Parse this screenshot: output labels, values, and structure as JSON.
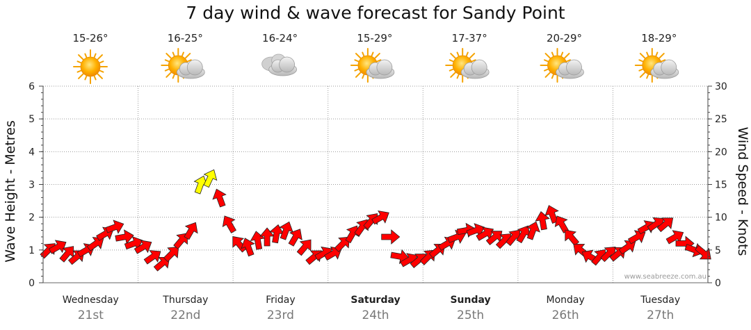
{
  "title": "7 day wind & wave forecast for Sandy Point",
  "credit": "www.seabreeze.com.au",
  "days": [
    {
      "name": "Wednesday",
      "date": "21st",
      "temp": "15-26°",
      "icon": "sun-icon",
      "bold": false
    },
    {
      "name": "Thursday",
      "date": "22nd",
      "temp": "16-25°",
      "icon": "sun-cloud-icon",
      "bold": false
    },
    {
      "name": "Friday",
      "date": "23rd",
      "temp": "16-24°",
      "icon": "cloud-icon",
      "bold": false
    },
    {
      "name": "Saturday",
      "date": "24th",
      "temp": "15-29°",
      "icon": "sun-cloud-icon",
      "bold": true
    },
    {
      "name": "Sunday",
      "date": "25th",
      "temp": "17-37°",
      "icon": "sun-cloud-icon",
      "bold": true
    },
    {
      "name": "Monday",
      "date": "26th",
      "temp": "20-29°",
      "icon": "sun-cloud-icon",
      "bold": false
    },
    {
      "name": "Tuesday",
      "date": "27th",
      "temp": "18-29°",
      "icon": "sun-cloud-icon",
      "bold": false
    }
  ],
  "chart_data": {
    "type": "line",
    "title": "7 day wind & wave forecast for Sandy Point",
    "ylabel_left": "Wave Height - Metres",
    "ylabel_right": "Wind Speed - Knots",
    "ylim_left": [
      0,
      6
    ],
    "ylim_right": [
      0,
      30
    ],
    "yticks_left": [
      "0",
      "1",
      "2",
      "3",
      "4",
      "5",
      "6"
    ],
    "yticks_right": [
      "0",
      "5",
      "10",
      "15",
      "20",
      "25",
      "30"
    ],
    "grid": true,
    "colors": {
      "normal": "#ff0000",
      "strong": "#ffff00"
    },
    "series": [
      {
        "name": "Wind Speed - Knots",
        "x_days": [
          0,
          0.1,
          0.2,
          0.3,
          0.4,
          0.5,
          0.6,
          0.7,
          0.8,
          0.9,
          1,
          1.1,
          1.2,
          1.3,
          1.4,
          1.5,
          1.6,
          1.7,
          1.8,
          1.9,
          2,
          2.1,
          2.2,
          2.3,
          2.4,
          2.5,
          2.6,
          2.7,
          2.8,
          2.9,
          3,
          3.1,
          3.2,
          3.3,
          3.4,
          3.5,
          3.6,
          3.7,
          3.8,
          3.9,
          4,
          4.1,
          4.2,
          4.3,
          4.4,
          4.5,
          4.6,
          4.7,
          4.8,
          4.9,
          5,
          5.1,
          5.2,
          5.3,
          5.4,
          5.5,
          5.6,
          5.7,
          5.8,
          5.9,
          6,
          6.1,
          6.2,
          6.3,
          6.4,
          6.5,
          6.6,
          6.7,
          6.8,
          6.9
        ],
        "values": [
          5,
          5.5,
          4.5,
          4,
          5,
          6,
          7.5,
          8.5,
          7,
          6,
          5.5,
          4,
          3,
          4.5,
          6.5,
          8,
          15,
          16,
          13,
          9,
          6,
          5.5,
          6.5,
          7,
          7.5,
          8,
          7,
          5.5,
          4,
          4.5,
          4.5,
          6,
          7.5,
          8.5,
          9.5,
          10,
          7,
          4,
          3.5,
          3.5,
          4,
          5,
          6,
          7,
          8,
          8,
          7.5,
          7,
          6.5,
          7,
          7.5,
          8,
          9.5,
          10.5,
          9,
          7,
          5,
          4,
          4,
          4.5,
          4.5,
          5.5,
          7,
          8.5,
          9,
          9,
          7,
          6,
          5,
          4.5
        ],
        "direction_deg": [
          45,
          60,
          40,
          50,
          60,
          55,
          60,
          70,
          80,
          70,
          60,
          55,
          50,
          45,
          40,
          30,
          20,
          25,
          340,
          330,
          320,
          340,
          350,
          0,
          10,
          20,
          30,
          40,
          50,
          60,
          60,
          45,
          30,
          35,
          40,
          60,
          90,
          100,
          60,
          50,
          45,
          50,
          60,
          70,
          80,
          70,
          60,
          50,
          45,
          40,
          30,
          20,
          350,
          340,
          330,
          320,
          310,
          300,
          40,
          45,
          50,
          55,
          60,
          60,
          55,
          50,
          60,
          90,
          110,
          130
        ]
      }
    ]
  }
}
